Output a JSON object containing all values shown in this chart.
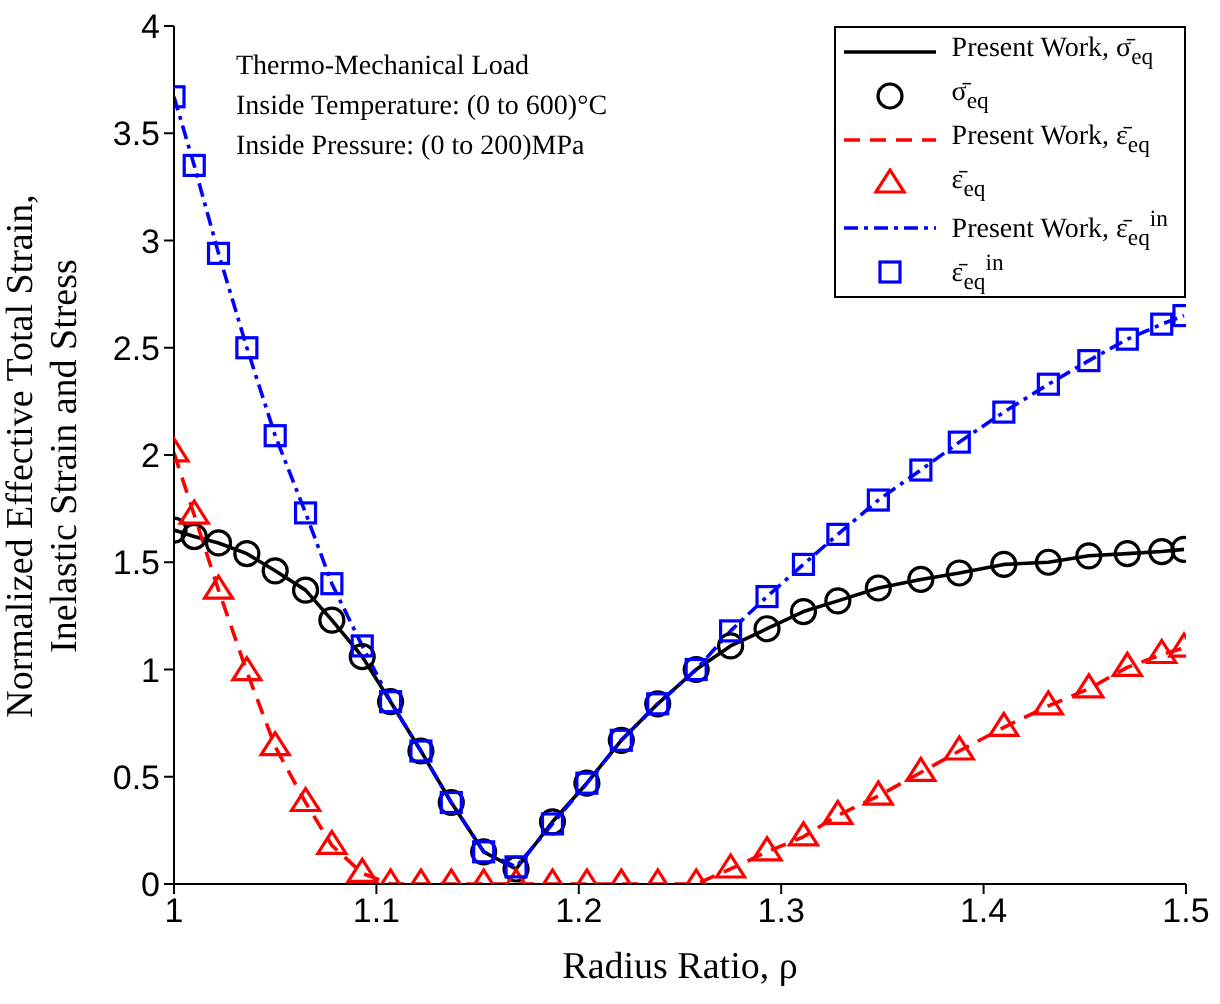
{
  "chart_data": {
    "type": "line",
    "xlabel": "Radius Ratio, ρ",
    "ylabel": "Normalized Effective Total Strain,\nInelastic Strain and Stress",
    "annotations": [
      "Thermo-Mechanical Load",
      "Inside Temperature: (0 to 600)°C",
      "Inside Pressure: (0 to 200)MPa"
    ],
    "x": [
      1,
      1.01,
      1.022,
      1.036,
      1.05,
      1.065,
      1.078,
      1.093,
      1.107,
      1.122,
      1.137,
      1.153,
      1.169,
      1.187,
      1.204,
      1.221,
      1.239,
      1.258,
      1.275,
      1.293,
      1.311,
      1.328,
      1.348,
      1.369,
      1.388,
      1.41,
      1.432,
      1.452,
      1.471,
      1.488,
      1.499
    ],
    "series": [
      {
        "name": "Present Work, σ̄$_{eq}$",
        "type": "line",
        "color": "#000000",
        "line_style": "solid",
        "marker": "none",
        "values": [
          1.65,
          1.62,
          1.59,
          1.54,
          1.46,
          1.37,
          1.23,
          1.06,
          0.85,
          0.62,
          0.38,
          0.15,
          0.07,
          0.29,
          0.47,
          0.67,
          0.84,
          1.0,
          1.11,
          1.19,
          1.27,
          1.32,
          1.38,
          1.42,
          1.45,
          1.49,
          1.5,
          1.53,
          1.54,
          1.55,
          1.56
        ]
      },
      {
        "name": "σ̄$_{eq}$",
        "type": "scatter",
        "color": "#000000",
        "marker": "circle",
        "values": [
          1.65,
          1.62,
          1.59,
          1.54,
          1.46,
          1.37,
          1.23,
          1.06,
          0.85,
          0.62,
          0.38,
          0.15,
          0.07,
          0.29,
          0.47,
          0.67,
          0.84,
          1.0,
          1.11,
          1.19,
          1.27,
          1.32,
          1.38,
          1.42,
          1.45,
          1.49,
          1.5,
          1.53,
          1.54,
          1.55,
          1.56
        ]
      },
      {
        "name": "Present Work, ε̄$_{eq}$",
        "type": "line",
        "color": "#ff0000",
        "line_style": "dashed",
        "marker": "none",
        "values": [
          2.01,
          1.72,
          1.37,
          0.99,
          0.64,
          0.38,
          0.18,
          0.05,
          0,
          0,
          0,
          0,
          0,
          0,
          0,
          0,
          0,
          0,
          0.07,
          0.15,
          0.22,
          0.32,
          0.41,
          0.52,
          0.62,
          0.73,
          0.83,
          0.91,
          1.01,
          1.07,
          1.1
        ]
      },
      {
        "name": "ε̄$_{eq}$",
        "type": "scatter",
        "color": "#ff0000",
        "marker": "triangle",
        "values": [
          2.01,
          1.72,
          1.37,
          0.99,
          0.64,
          0.38,
          0.18,
          0.05,
          0,
          0,
          0,
          0,
          0,
          0,
          0,
          0,
          0,
          0,
          0.07,
          0.15,
          0.22,
          0.32,
          0.41,
          0.52,
          0.62,
          0.73,
          0.83,
          0.91,
          1.01,
          1.07,
          1.1
        ]
      },
      {
        "name": "Present Work, ε̄$_{eq}$$^{in}$",
        "type": "line",
        "color": "#0000ff",
        "line_style": "dashdot",
        "marker": "none",
        "values": [
          3.67,
          3.35,
          2.94,
          2.5,
          2.09,
          1.73,
          1.4,
          1.11,
          0.85,
          0.62,
          0.38,
          0.15,
          0.08,
          0.28,
          0.47,
          0.67,
          0.84,
          1.0,
          1.18,
          1.34,
          1.49,
          1.63,
          1.79,
          1.93,
          2.06,
          2.2,
          2.33,
          2.44,
          2.54,
          2.61,
          2.65
        ]
      },
      {
        "name": "ε̄$_{eq}$$^{in}$",
        "type": "scatter",
        "color": "#0000ff",
        "marker": "square",
        "values": [
          3.67,
          3.35,
          2.94,
          2.5,
          2.09,
          1.73,
          1.4,
          1.11,
          0.85,
          0.62,
          0.38,
          0.15,
          0.08,
          0.28,
          0.47,
          0.67,
          0.84,
          1.0,
          1.18,
          1.34,
          1.49,
          1.63,
          1.79,
          1.93,
          2.06,
          2.2,
          2.33,
          2.44,
          2.54,
          2.61,
          2.65
        ]
      }
    ],
    "xlim": [
      1,
      1.5
    ],
    "xticks": [
      1,
      1.1,
      1.2,
      1.3,
      1.4,
      1.5
    ],
    "ylim": [
      0,
      4
    ],
    "yticks": [
      0,
      0.5,
      1,
      1.5,
      2,
      2.5,
      3,
      3.5,
      4
    ],
    "legend": "top right",
    "grid": false
  }
}
